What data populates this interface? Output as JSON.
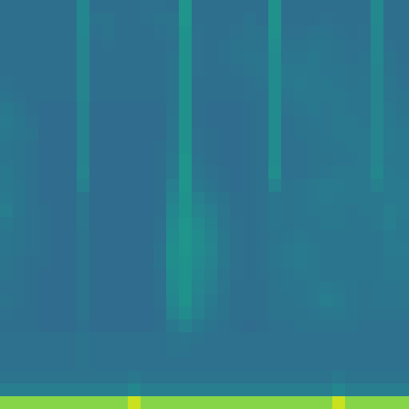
{
  "chart_data": {
    "type": "heatmap",
    "tick_labels": false,
    "color": "viridis",
    "zlim": [
      0,
      100
    ],
    "values": [
      [
        36,
        36,
        36,
        36,
        36,
        36,
        46,
        36,
        36,
        36,
        36,
        37,
        37,
        36,
        52,
        36,
        36,
        36,
        36,
        36,
        36,
        50,
        36,
        36,
        36,
        36,
        36,
        36,
        36,
        47,
        36,
        36
      ],
      [
        36,
        36,
        36,
        36,
        36,
        36,
        46,
        38,
        38,
        36,
        36,
        37,
        38,
        38,
        52,
        36,
        36,
        36,
        36,
        38,
        36,
        50,
        36,
        36,
        36,
        37,
        36,
        36,
        36,
        47,
        36,
        36
      ],
      [
        36,
        36,
        36,
        36,
        36,
        36,
        46,
        37,
        38,
        36,
        36,
        36,
        37,
        38,
        51,
        37,
        36,
        36,
        37,
        38,
        38,
        50,
        37,
        37,
        38,
        38,
        37,
        36,
        37,
        46,
        36,
        36
      ],
      [
        36,
        36,
        36,
        36,
        36,
        36,
        45,
        36,
        37,
        36,
        36,
        36,
        36,
        37,
        50,
        37,
        36,
        37,
        38,
        38,
        38,
        49,
        38,
        38,
        39,
        39,
        38,
        37,
        37,
        46,
        37,
        36
      ],
      [
        36,
        36,
        36,
        36,
        36,
        36,
        45,
        36,
        36,
        36,
        36,
        36,
        36,
        38,
        50,
        37,
        36,
        37,
        38,
        39,
        39,
        48,
        39,
        39,
        40,
        39,
        38,
        37,
        38,
        46,
        38,
        36
      ],
      [
        36,
        36,
        36,
        36,
        36,
        36,
        45,
        36,
        36,
        36,
        36,
        36,
        36,
        38,
        50,
        37,
        36,
        36,
        37,
        38,
        39,
        48,
        40,
        40,
        40,
        39,
        39,
        38,
        38,
        45,
        38,
        37
      ],
      [
        37,
        36,
        36,
        36,
        36,
        36,
        45,
        36,
        36,
        36,
        36,
        36,
        36,
        38,
        50,
        36,
        36,
        36,
        36,
        37,
        38,
        48,
        40,
        41,
        40,
        40,
        39,
        38,
        39,
        45,
        39,
        37
      ],
      [
        38,
        37,
        36,
        36,
        36,
        36,
        45,
        36,
        36,
        36,
        36,
        36,
        36,
        38,
        50,
        36,
        36,
        36,
        36,
        37,
        37,
        48,
        39,
        40,
        40,
        40,
        40,
        39,
        39,
        45,
        39,
        38
      ],
      [
        40,
        38,
        36,
        35,
        35,
        35,
        44,
        35,
        35,
        35,
        35,
        35,
        35,
        38,
        50,
        36,
        35,
        35,
        35,
        36,
        37,
        48,
        38,
        39,
        40,
        39,
        40,
        39,
        39,
        45,
        40,
        38
      ],
      [
        41,
        39,
        37,
        35,
        35,
        35,
        44,
        35,
        35,
        35,
        35,
        35,
        35,
        39,
        50,
        36,
        35,
        35,
        35,
        36,
        37,
        48,
        37,
        38,
        39,
        39,
        40,
        40,
        39,
        45,
        40,
        39
      ],
      [
        40,
        39,
        38,
        35,
        35,
        35,
        44,
        35,
        35,
        35,
        35,
        35,
        35,
        39,
        50,
        37,
        36,
        35,
        35,
        36,
        37,
        48,
        37,
        38,
        38,
        39,
        40,
        40,
        40,
        45,
        41,
        40
      ],
      [
        39,
        38,
        37,
        35,
        35,
        35,
        44,
        35,
        35,
        35,
        35,
        35,
        36,
        39,
        51,
        37,
        36,
        35,
        35,
        36,
        37,
        48,
        37,
        37,
        38,
        39,
        39,
        40,
        40,
        45,
        41,
        40
      ],
      [
        39,
        38,
        37,
        35,
        35,
        35,
        44,
        35,
        35,
        35,
        35,
        35,
        36,
        40,
        52,
        38,
        36,
        35,
        35,
        36,
        37,
        48,
        37,
        37,
        38,
        38,
        39,
        39,
        40,
        45,
        40,
        40
      ],
      [
        40,
        38,
        37,
        35,
        35,
        35,
        45,
        35,
        35,
        35,
        35,
        35,
        36,
        40,
        52,
        39,
        37,
        36,
        35,
        36,
        37,
        49,
        37,
        37,
        38,
        39,
        40,
        40,
        40,
        46,
        41,
        40
      ],
      [
        40,
        39,
        37,
        35,
        35,
        35,
        43,
        35,
        35,
        35,
        35,
        35,
        36,
        42,
        52,
        40,
        38,
        36,
        35,
        36,
        37,
        44,
        38,
        39,
        40,
        41,
        41,
        40,
        40,
        43,
        41,
        41
      ],
      [
        41,
        39,
        37,
        35,
        35,
        35,
        39,
        35,
        35,
        35,
        35,
        35,
        36,
        44,
        51,
        43,
        40,
        38,
        36,
        36,
        37,
        39,
        38,
        39,
        40,
        41,
        40,
        40,
        40,
        40,
        41,
        41
      ],
      [
        42,
        39,
        37,
        36,
        35,
        35,
        39,
        35,
        35,
        35,
        35,
        35,
        36,
        46,
        51,
        45,
        42,
        39,
        36,
        36,
        37,
        39,
        38,
        39,
        40,
        40,
        40,
        39,
        40,
        40,
        42,
        41
      ],
      [
        40,
        38,
        37,
        36,
        35,
        35,
        39,
        35,
        35,
        35,
        35,
        35,
        37,
        47,
        52,
        47,
        43,
        39,
        37,
        36,
        37,
        39,
        38,
        39,
        39,
        40,
        40,
        39,
        39,
        40,
        42,
        40
      ],
      [
        39,
        38,
        37,
        36,
        35,
        35,
        38,
        35,
        35,
        35,
        35,
        35,
        37,
        48,
        52,
        48,
        44,
        40,
        37,
        36,
        37,
        38,
        39,
        40,
        39,
        39,
        39,
        39,
        39,
        39,
        41,
        40
      ],
      [
        39,
        38,
        37,
        36,
        35,
        35,
        38,
        35,
        35,
        35,
        35,
        35,
        38,
        49,
        52,
        48,
        45,
        40,
        37,
        36,
        37,
        39,
        40,
        41,
        40,
        39,
        39,
        39,
        39,
        39,
        41,
        41
      ],
      [
        38,
        37,
        36,
        36,
        35,
        35,
        38,
        35,
        35,
        35,
        35,
        35,
        38,
        49,
        51,
        47,
        44,
        40,
        37,
        36,
        37,
        39,
        40,
        41,
        40,
        39,
        39,
        39,
        39,
        39,
        40,
        40
      ],
      [
        38,
        37,
        36,
        35,
        35,
        35,
        38,
        35,
        35,
        35,
        35,
        35,
        37,
        48,
        51,
        46,
        43,
        39,
        37,
        36,
        37,
        38,
        39,
        40,
        40,
        39,
        39,
        39,
        39,
        39,
        40,
        40
      ],
      [
        37,
        37,
        36,
        35,
        35,
        35,
        38,
        35,
        35,
        35,
        35,
        35,
        37,
        47,
        51,
        45,
        42,
        39,
        36,
        36,
        36,
        38,
        39,
        39,
        40,
        41,
        40,
        39,
        38,
        39,
        39,
        39
      ],
      [
        38,
        37,
        36,
        35,
        35,
        35,
        38,
        35,
        35,
        35,
        35,
        35,
        37,
        46,
        50,
        44,
        41,
        38,
        36,
        36,
        36,
        38,
        38,
        39,
        40,
        42,
        41,
        39,
        38,
        39,
        39,
        39
      ],
      [
        37,
        36,
        36,
        35,
        35,
        35,
        38,
        35,
        35,
        35,
        35,
        35,
        36,
        44,
        48,
        43,
        40,
        38,
        36,
        36,
        36,
        38,
        38,
        38,
        39,
        40,
        40,
        39,
        38,
        38,
        38,
        38
      ],
      [
        36,
        36,
        36,
        35,
        35,
        35,
        37,
        35,
        35,
        35,
        35,
        35,
        36,
        40,
        43,
        40,
        38,
        37,
        36,
        35,
        36,
        37,
        37,
        38,
        38,
        38,
        38,
        38,
        37,
        37,
        37,
        37
      ],
      [
        37,
        37,
        37,
        37,
        37,
        37,
        38,
        37,
        37,
        37,
        37,
        37,
        37,
        38,
        39,
        38,
        37,
        37,
        37,
        37,
        37,
        37,
        37,
        37,
        37,
        37,
        37,
        37,
        37,
        37,
        37,
        37
      ],
      [
        37,
        37,
        37,
        37,
        37,
        37,
        38,
        37,
        37,
        37,
        37,
        37,
        37,
        38,
        38,
        37,
        37,
        37,
        37,
        37,
        37,
        37,
        37,
        37,
        37,
        37,
        37,
        37,
        37,
        37,
        37,
        37
      ],
      [
        37,
        37,
        37,
        37,
        37,
        37,
        38,
        37,
        37,
        37,
        37,
        37,
        37,
        37,
        37,
        37,
        37,
        37,
        37,
        37,
        37,
        37,
        37,
        37,
        37,
        37,
        37,
        37,
        37,
        37,
        37,
        37
      ],
      [
        38,
        38,
        38,
        38,
        38,
        38,
        38,
        38,
        38,
        38,
        40,
        38,
        38,
        38,
        38,
        38,
        38,
        38,
        38,
        38,
        38,
        38,
        38,
        38,
        38,
        38,
        40,
        38,
        38,
        38,
        38,
        38
      ],
      [
        42,
        42,
        42,
        42,
        42,
        42,
        42,
        42,
        42,
        42,
        46,
        42,
        42,
        42,
        42,
        42,
        42,
        42,
        42,
        42,
        42,
        42,
        42,
        42,
        42,
        42,
        46,
        42,
        42,
        42,
        42,
        42
      ],
      [
        82,
        82,
        82,
        82,
        82,
        82,
        82,
        82,
        82,
        82,
        92,
        82,
        82,
        82,
        82,
        82,
        82,
        82,
        82,
        82,
        82,
        82,
        82,
        82,
        82,
        82,
        92,
        82,
        82,
        82,
        82,
        82
      ]
    ]
  }
}
